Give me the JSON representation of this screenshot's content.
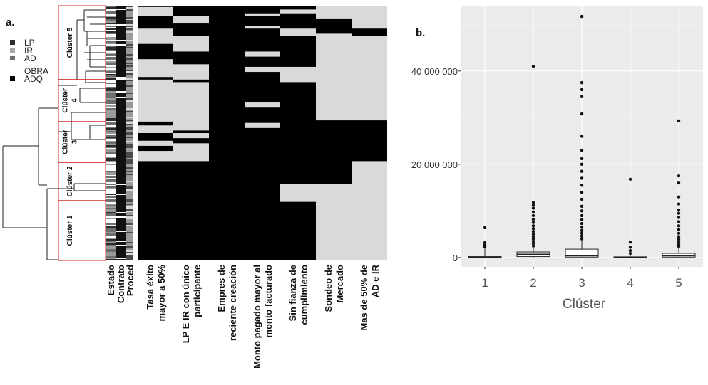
{
  "figure": {
    "label_a": "a.",
    "label_b": "b."
  },
  "legend": {
    "items": [
      {
        "label": "LP",
        "color": "#2b2b2b"
      },
      {
        "label": "IR",
        "color": "#a8a8a8"
      },
      {
        "label": "AD",
        "color": "#6e6e6e"
      },
      {
        "label": "OBRA",
        "color": "#ffffff"
      },
      {
        "label": "ADQ",
        "color": "#000000"
      }
    ]
  },
  "heatmap": {
    "cluster_labels": [
      "Clúster 5",
      "Clúster 4",
      "Clúster 3",
      "Clúster 2",
      "Clúster 1"
    ],
    "cluster_label_lines": [
      [
        "Clúster 5"
      ],
      [
        "Clúster",
        "4"
      ],
      [
        "Clúster",
        "3"
      ],
      [
        "Clúster 2"
      ],
      [
        "Clúster 1"
      ]
    ],
    "cluster_bounds": [
      0.0,
      0.29,
      0.455,
      0.615,
      0.765,
      1.0
    ],
    "meta_columns": [
      "Estado",
      "Contrato",
      "Proced"
    ],
    "feature_columns": [
      [
        "Tasa éxito",
        "mayor a 50%"
      ],
      [
        "LP E IR con único",
        "participante"
      ],
      [
        "Empres de",
        "reciente creación"
      ],
      [
        "Monto pagado mayor al",
        "monto facturado"
      ],
      [
        "Sin fianza de",
        "cumplimiento"
      ],
      [
        "Sondeo de",
        "Mercado"
      ],
      [
        "Mas de 50% de",
        "AD e IR"
      ]
    ],
    "feature_black_segments": [
      [
        [
          0.0,
          0.005
        ],
        [
          0.04,
          0.09
        ],
        [
          0.15,
          0.21
        ],
        [
          0.28,
          0.29
        ],
        [
          0.455,
          0.47
        ],
        [
          0.5,
          0.53
        ],
        [
          0.55,
          0.57
        ],
        [
          0.61,
          1.0
        ]
      ],
      [
        [
          0.0,
          0.04
        ],
        [
          0.07,
          0.12
        ],
        [
          0.18,
          0.23
        ],
        [
          0.29,
          0.3
        ],
        [
          0.49,
          0.5
        ],
        [
          0.52,
          0.54
        ],
        [
          0.61,
          1.0
        ]
      ],
      [
        [
          0.0,
          1.0
        ]
      ],
      [
        [
          0.0,
          0.03
        ],
        [
          0.04,
          0.08
        ],
        [
          0.09,
          0.18
        ],
        [
          0.2,
          0.24
        ],
        [
          0.26,
          0.38
        ],
        [
          0.4,
          0.46
        ],
        [
          0.48,
          1.0
        ]
      ],
      [
        [
          0.0,
          0.015
        ],
        [
          0.03,
          0.09
        ],
        [
          0.12,
          0.24
        ],
        [
          0.3,
          0.7
        ],
        [
          0.77,
          1.0
        ]
      ],
      [
        [
          0.05,
          0.11
        ],
        [
          0.45,
          0.7
        ]
      ],
      [
        [
          0.09,
          0.12
        ],
        [
          0.45,
          0.61
        ]
      ]
    ]
  },
  "chart_data": {
    "type": "box",
    "title": "",
    "xlabel": "Clúster",
    "ylabel": "",
    "categories": [
      "1",
      "2",
      "3",
      "4",
      "5"
    ],
    "y_tick_values": [
      0,
      20000000,
      40000000
    ],
    "y_tick_labels": [
      "0",
      "20 000 000",
      "40 000 000"
    ],
    "ylim": [
      -2000000,
      54000000
    ],
    "grid": true,
    "boxes": [
      {
        "name": "1",
        "q1": 0,
        "median": 50000,
        "q3": 200000,
        "whisker_low": 0,
        "whisker_high": 2000000,
        "outliers": [
          2300000,
          2700000,
          3200000,
          6400000
        ]
      },
      {
        "name": "2",
        "q1": 200000,
        "median": 700000,
        "q3": 1200000,
        "whisker_low": 0,
        "whisker_high": 2200000,
        "outliers": [
          2500000,
          3000000,
          3500000,
          4000000,
          4500000,
          5000000,
          5600000,
          6200000,
          6800000,
          7500000,
          8200000,
          9000000,
          9800000,
          10600000,
          11200000,
          11800000,
          41000000
        ]
      },
      {
        "name": "3",
        "q1": 100000,
        "median": 400000,
        "q3": 1800000,
        "whisker_low": 0,
        "whisker_high": 3500000,
        "outliers": [
          4000000,
          4600000,
          5200000,
          5800000,
          6500000,
          7300000,
          8100000,
          9000000,
          10000000,
          11000000,
          12500000,
          14000000,
          15500000,
          17000000,
          18500000,
          20000000,
          21200000,
          23000000,
          26000000,
          30800000,
          34500000,
          36000000,
          37500000,
          51700000
        ]
      },
      {
        "name": "4",
        "q1": 0,
        "median": 30000,
        "q3": 150000,
        "whisker_low": 0,
        "whisker_high": 500000,
        "outliers": [
          900000,
          1500000,
          2200000,
          3300000,
          16800000
        ]
      },
      {
        "name": "5",
        "q1": 100000,
        "median": 400000,
        "q3": 900000,
        "whisker_low": 0,
        "whisker_high": 2000000,
        "outliers": [
          2400000,
          2800000,
          3300000,
          3900000,
          4500000,
          5200000,
          6000000,
          6800000,
          7700000,
          8600000,
          9500000,
          10200000,
          11500000,
          13000000,
          16000000,
          17500000,
          29300000
        ]
      }
    ]
  }
}
